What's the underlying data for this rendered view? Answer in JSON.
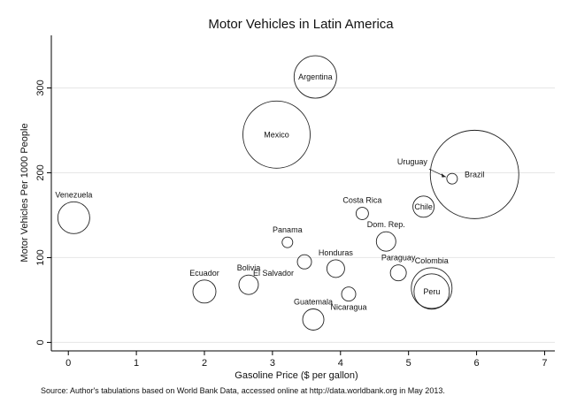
{
  "chart_data": {
    "type": "scatter",
    "title": "Motor Vehicles in Latin America",
    "xlabel": "Gasoline Price ($ per gallon)",
    "ylabel": "Motor Vehicles Per 1000 People",
    "xlim": [
      -0.25,
      7.15
    ],
    "ylim": [
      -10,
      362
    ],
    "xticks": [
      0,
      1,
      2,
      3,
      4,
      5,
      6,
      7
    ],
    "yticks": [
      0,
      100,
      200,
      300
    ],
    "grid": "horizontal",
    "note": "Source: Author's tabulations based on World Bank Data, accessed online at http://data.worldbank.org in May 2013.",
    "points": [
      {
        "name": "Argentina",
        "x": 3.63,
        "y": 313,
        "size": 24,
        "label_position": "center"
      },
      {
        "name": "Mexico",
        "x": 3.06,
        "y": 245,
        "size": 38,
        "label_position": "center"
      },
      {
        "name": "Brazil",
        "x": 5.97,
        "y": 198,
        "size": 50,
        "label_position": "center"
      },
      {
        "name": "Uruguay",
        "x": 5.64,
        "y": 193,
        "size": 6,
        "label_position": "upper-left-arrow"
      },
      {
        "name": "Venezuela",
        "x": 0.08,
        "y": 147,
        "size": 18,
        "label_position": "above"
      },
      {
        "name": "Costa Rica",
        "x": 4.32,
        "y": 152,
        "size": 7,
        "label_position": "above"
      },
      {
        "name": "Chile",
        "x": 5.22,
        "y": 160,
        "size": 12,
        "label_position": "center"
      },
      {
        "name": "Dom. Rep.",
        "x": 4.67,
        "y": 119,
        "size": 11,
        "label_position": "above"
      },
      {
        "name": "Panama",
        "x": 3.22,
        "y": 118,
        "size": 6,
        "label_position": "above"
      },
      {
        "name": "Honduras",
        "x": 3.93,
        "y": 87,
        "size": 10,
        "label_position": "above"
      },
      {
        "name": "El Salvador",
        "x": 3.47,
        "y": 95,
        "size": 8,
        "label_position": "below-left"
      },
      {
        "name": "Paraguay",
        "x": 4.85,
        "y": 82,
        "size": 9,
        "label_position": "above"
      },
      {
        "name": "Colombia",
        "x": 5.34,
        "y": 64,
        "size": 23,
        "label_position": "above"
      },
      {
        "name": "Peru",
        "x": 5.34,
        "y": 60,
        "size": 20,
        "label_position": "center"
      },
      {
        "name": "Ecuador",
        "x": 2.0,
        "y": 60,
        "size": 13,
        "label_position": "above"
      },
      {
        "name": "Bolivia",
        "x": 2.65,
        "y": 68,
        "size": 11,
        "label_position": "above"
      },
      {
        "name": "Nicaragua",
        "x": 4.12,
        "y": 57,
        "size": 8,
        "label_position": "below"
      },
      {
        "name": "Guatemala",
        "x": 3.6,
        "y": 27,
        "size": 12,
        "label_position": "above"
      }
    ]
  }
}
